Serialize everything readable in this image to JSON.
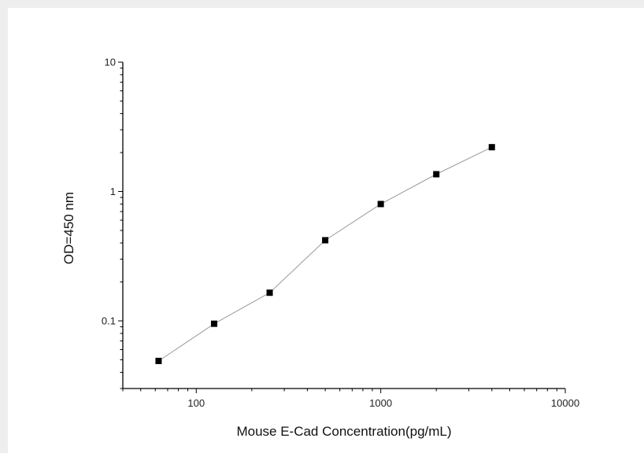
{
  "chart_data": {
    "type": "scatter",
    "title": "",
    "xlabel": "Mouse E-Cad  Concentration(pg/mL)",
    "ylabel": "OD=450 nm",
    "xscale": "log",
    "yscale": "log",
    "xlim": [
      40,
      10000
    ],
    "ylim": [
      0.03,
      10
    ],
    "x_ticks": [
      "100",
      "1000",
      "10000"
    ],
    "y_ticks": [
      "0.1",
      "1",
      "10"
    ],
    "grid": false,
    "legend": "none",
    "line_connected": true,
    "series": [
      {
        "x": [
          62.5,
          125,
          250,
          500,
          1000,
          2000,
          4000
        ],
        "y": [
          0.049,
          0.095,
          0.165,
          0.42,
          0.8,
          1.36,
          2.2
        ]
      }
    ],
    "colors": {
      "marker": "#000000",
      "line": "#999999",
      "axis": "#000000"
    }
  }
}
